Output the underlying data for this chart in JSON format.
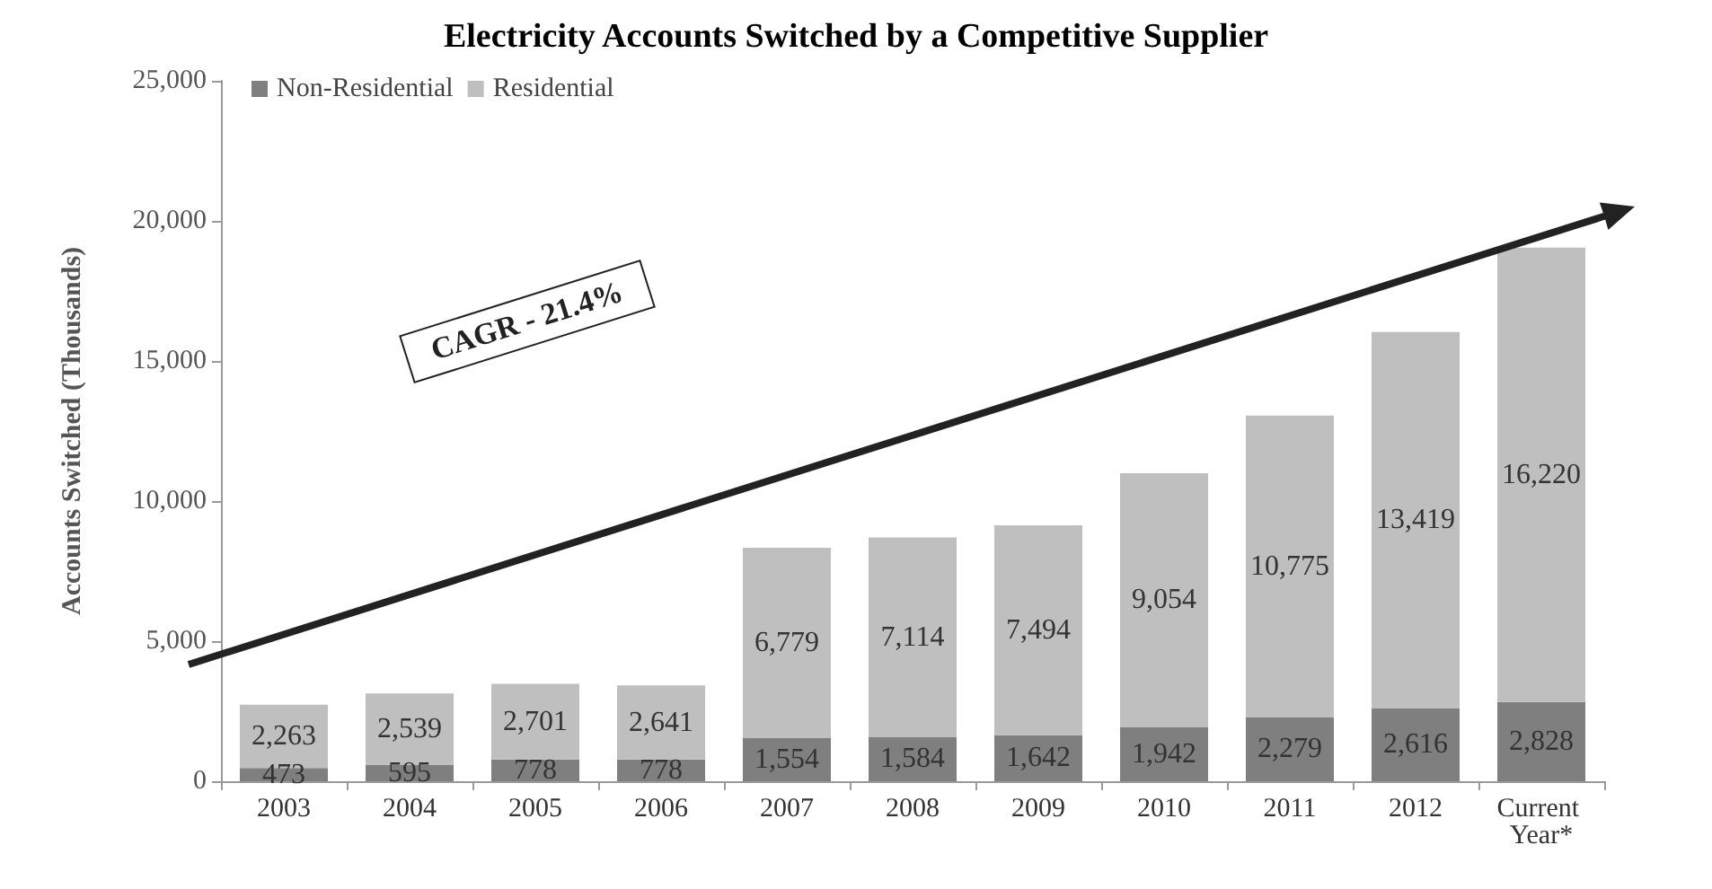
{
  "chart_data": {
    "type": "bar",
    "title": "Electricity Accounts Switched by a Competitive Supplier",
    "ylabel": "Accounts Switched (Thousands)",
    "categories": [
      "2003",
      "2004",
      "2005",
      "2006",
      "2007",
      "2008",
      "2009",
      "2010",
      "2011",
      "2012",
      "Current Year*"
    ],
    "series": [
      {
        "name": "Non-Residential",
        "color": "#7f7f7f",
        "values": [
          473,
          595,
          778,
          778,
          1554,
          1584,
          1642,
          1942,
          2279,
          2616,
          2828
        ],
        "value_labels": [
          "473",
          "595",
          "778",
          "778",
          "1,554",
          "1,584",
          "1,642",
          "1,942",
          "2,279",
          "2,616",
          "2,828"
        ]
      },
      {
        "name": "Residential",
        "color": "#bfbfbf",
        "values": [
          2263,
          2539,
          2701,
          2641,
          6779,
          7114,
          7494,
          9054,
          10775,
          13419,
          16220
        ],
        "value_labels": [
          "2,263",
          "2,539",
          "2,701",
          "2,641",
          "6,779",
          "7,114",
          "7,494",
          "9,054",
          "10,775",
          "13,419",
          "16,220"
        ]
      }
    ],
    "stacked": true,
    "ylim": [
      0,
      25000
    ],
    "yticks": [
      0,
      {
        "value": 5000,
        "label": "5,000"
      },
      {
        "value": 10000,
        "label": "10,000"
      },
      {
        "value": 15000,
        "label": "15,000"
      },
      {
        "value": 20000,
        "label": "20,000"
      },
      {
        "value": 25000,
        "label": "25,000"
      }
    ],
    "grid": false,
    "legend": "top left",
    "annotations": [
      "CAGR - 21.4%"
    ]
  }
}
